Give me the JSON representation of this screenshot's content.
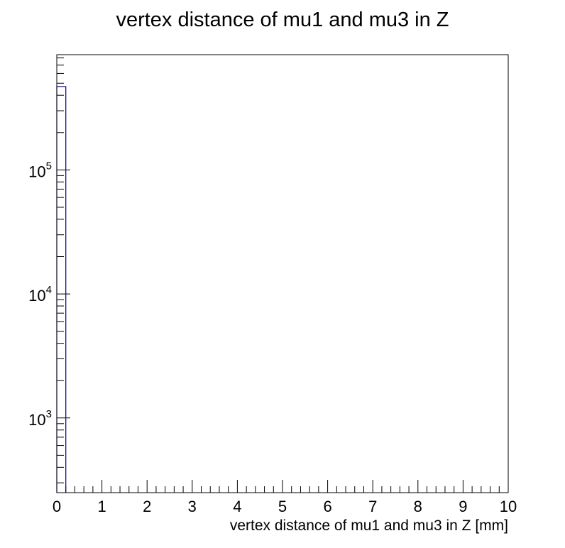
{
  "chart_data": {
    "type": "bar",
    "title": "vertex distance of mu1 and mu3 in Z",
    "xlabel": "vertex distance of mu1 and mu3 in Z [mm]",
    "ylabel": "",
    "xlim": [
      0,
      10
    ],
    "ylim": [
      250,
      850000
    ],
    "y_scale": "log",
    "x_ticks": [
      "0",
      "1",
      "2",
      "3",
      "4",
      "5",
      "6",
      "7",
      "8",
      "9",
      "10"
    ],
    "y_ticks": [
      {
        "base": "10",
        "exponent": "3",
        "value": 1000
      },
      {
        "base": "10",
        "exponent": "4",
        "value": 10000
      },
      {
        "base": "10",
        "exponent": "5",
        "value": 100000
      }
    ],
    "bins": [
      {
        "x_low": 0,
        "x_high": 0.2,
        "value": 470000
      }
    ],
    "grid": false,
    "legend": "none",
    "line_color": "#00007f"
  }
}
